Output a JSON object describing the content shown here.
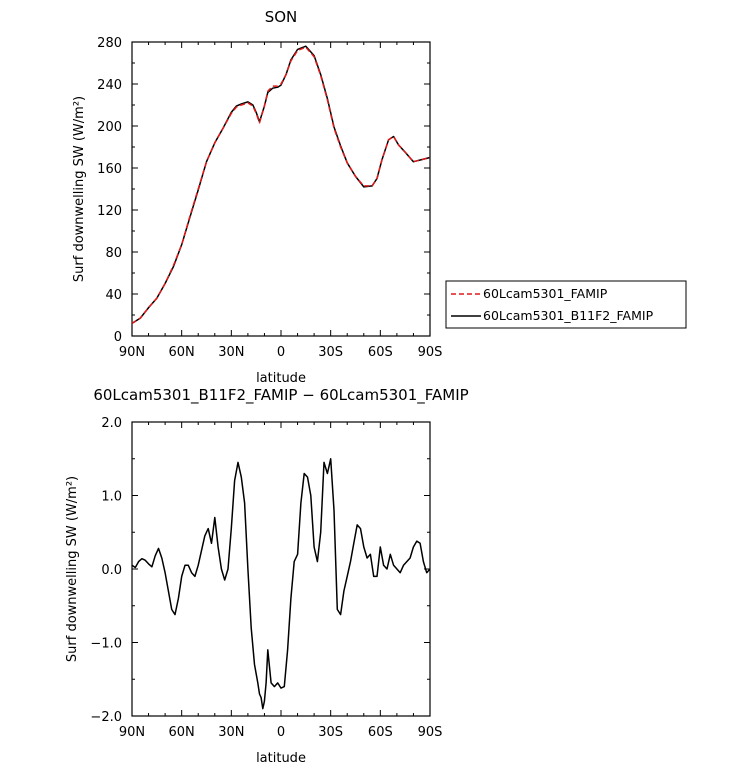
{
  "figure": {
    "title": "SON",
    "diff_title": "60Lcam5301_B11F2_FAMIP − 60Lcam5301_FAMIP",
    "legend": [
      "60Lcam5301_FAMIP",
      "60Lcam5301_B11F2_FAMIP"
    ],
    "colors": {
      "famip": "#e01818",
      "b11f2": "#000000"
    }
  },
  "chart_data": [
    {
      "type": "line",
      "title": "SON",
      "xlabel": "latitude",
      "ylabel": "Surf downwelling SW (W/m²)",
      "xlim": [
        90,
        -90
      ],
      "ylim": [
        0,
        280
      ],
      "xticks": [
        90,
        60,
        30,
        0,
        -30,
        -60,
        -90
      ],
      "xtick_labels": [
        "90N",
        "60N",
        "30N",
        "0",
        "30S",
        "60S",
        "90S"
      ],
      "yticks": [
        0,
        40,
        80,
        120,
        160,
        200,
        240,
        280
      ],
      "ytick_labels": [
        "0",
        "40",
        "80",
        "120",
        "160",
        "200",
        "240",
        "280"
      ],
      "legend_position": "right",
      "series": [
        {
          "name": "60Lcam5301_FAMIP",
          "style": "dashed",
          "x": [
            90,
            85,
            80,
            75,
            70,
            65,
            60,
            55,
            50,
            45,
            40,
            35,
            30,
            27,
            24,
            20,
            17,
            15,
            13,
            10,
            8,
            5,
            2,
            0,
            -3,
            -6,
            -10,
            -15,
            -20,
            -24,
            -28,
            -32,
            -36,
            -40,
            -45,
            -50,
            -55,
            -58,
            -61,
            -65,
            -68,
            -71,
            -75,
            -80,
            -85,
            -90
          ],
          "y": [
            12,
            17,
            27,
            36,
            50,
            67,
            87,
            114,
            140,
            166,
            184,
            198,
            212,
            218,
            220,
            222,
            219,
            212,
            203,
            219,
            233,
            238,
            238,
            240,
            249,
            262,
            272,
            275,
            266,
            248,
            225,
            198,
            180,
            165,
            152,
            143,
            143,
            150,
            168,
            187,
            190,
            182,
            175,
            166,
            168,
            170
          ]
        },
        {
          "name": "60Lcam5301_B11F2_FAMIP",
          "style": "solid",
          "x": [
            90,
            85,
            80,
            75,
            70,
            65,
            60,
            55,
            50,
            45,
            40,
            35,
            30,
            27,
            24,
            20,
            17,
            15,
            13,
            10,
            8,
            5,
            2,
            0,
            -3,
            -6,
            -10,
            -15,
            -20,
            -24,
            -28,
            -32,
            -36,
            -40,
            -45,
            -50,
            -55,
            -58,
            -61,
            -65,
            -68,
            -71,
            -75,
            -80,
            -85,
            -90
          ],
          "y": [
            12,
            17,
            27,
            36,
            50,
            66,
            87,
            113,
            139,
            166,
            184,
            198,
            213,
            219,
            221,
            223,
            220,
            213,
            204,
            219,
            232,
            236,
            237,
            239,
            249,
            263,
            273,
            276,
            267,
            249,
            226,
            199,
            181,
            165,
            152,
            142,
            143,
            150,
            168,
            187,
            190,
            182,
            175,
            166,
            168,
            170
          ]
        }
      ]
    },
    {
      "type": "line",
      "title": "60Lcam5301_B11F2_FAMIP − 60Lcam5301_FAMIP",
      "xlabel": "latitude",
      "ylabel": "Surf downwelling SW (W/m²)",
      "xlim": [
        90,
        -90
      ],
      "ylim": [
        -2.0,
        2.0
      ],
      "xticks": [
        90,
        60,
        30,
        0,
        -30,
        -60,
        -90
      ],
      "xtick_labels": [
        "90N",
        "60N",
        "30N",
        "0",
        "30S",
        "60S",
        "90S"
      ],
      "yticks": [
        -2.0,
        -1.0,
        0.0,
        1.0,
        2.0
      ],
      "ytick_labels": [
        "−2.0",
        "−1.0",
        "0.0",
        "1.0",
        "2.0"
      ],
      "series": [
        {
          "name": "",
          "style": "solid",
          "x": [
            90,
            88,
            86,
            84,
            82,
            80,
            78,
            76,
            74,
            72,
            70,
            68,
            66,
            64,
            62,
            60,
            58,
            56,
            54,
            52,
            50,
            48,
            46,
            44,
            42,
            40,
            38,
            36,
            34,
            32,
            30,
            28,
            26,
            24,
            22,
            20,
            18,
            16,
            14,
            13,
            12,
            11,
            10,
            9,
            8,
            6,
            4,
            2,
            0,
            -2,
            -4,
            -6,
            -8,
            -10,
            -12,
            -14,
            -16,
            -18,
            -20,
            -22,
            -24,
            -26,
            -28,
            -30,
            -32,
            -34,
            -36,
            -38,
            -40,
            -42,
            -44,
            -46,
            -48,
            -50,
            -52,
            -54,
            -56,
            -58,
            -60,
            -62,
            -64,
            -66,
            -68,
            -70,
            -72,
            -74,
            -76,
            -78,
            -80,
            -82,
            -84,
            -86,
            -88,
            -90
          ],
          "y": [
            0.05,
            0.02,
            0.1,
            0.14,
            0.12,
            0.07,
            0.03,
            0.18,
            0.28,
            0.15,
            -0.05,
            -0.3,
            -0.55,
            -0.62,
            -0.4,
            -0.1,
            0.05,
            0.05,
            -0.05,
            -0.1,
            0.05,
            0.25,
            0.45,
            0.55,
            0.35,
            0.7,
            0.3,
            0.0,
            -0.15,
            0.0,
            0.55,
            1.2,
            1.45,
            1.25,
            0.9,
            0.0,
            -0.8,
            -1.3,
            -1.55,
            -1.7,
            -1.75,
            -1.9,
            -1.8,
            -1.55,
            -1.1,
            -1.55,
            -1.6,
            -1.55,
            -1.62,
            -1.6,
            -1.1,
            -0.4,
            0.1,
            0.2,
            0.9,
            1.3,
            1.25,
            1.0,
            0.3,
            0.1,
            0.5,
            1.45,
            1.3,
            1.5,
            0.8,
            -0.55,
            -0.62,
            -0.3,
            -0.1,
            0.1,
            0.35,
            0.6,
            0.55,
            0.3,
            0.15,
            0.2,
            -0.1,
            -0.1,
            0.3,
            0.05,
            0.0,
            0.2,
            0.05,
            0.0,
            -0.05,
            0.05,
            0.1,
            0.15,
            0.3,
            0.38,
            0.35,
            0.1,
            -0.05,
            0.0
          ]
        }
      ]
    }
  ]
}
